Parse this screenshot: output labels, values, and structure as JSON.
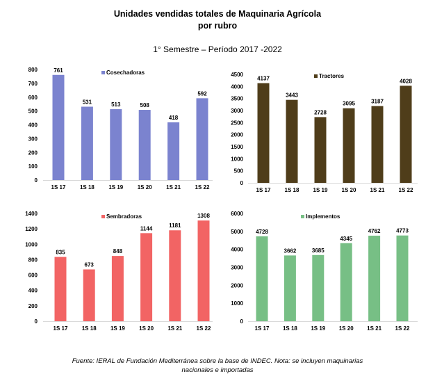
{
  "header": {
    "title_line1": "Unidades vendidas totales de Maquinaria Agrícola",
    "title_line2": "por rubro",
    "subtitle": "1° Semestre – Período 2017 -2022"
  },
  "footer": {
    "source_line1": "Fuente: IERAL de Fundación Mediterránea sobre la base de INDEC. Nota: se incluyen maquinarias",
    "source_line2": "nacionales e importadas"
  },
  "chart_data": [
    {
      "type": "bar",
      "series": [
        {
          "name": "Cosechadoras",
          "values": [
            761,
            531,
            513,
            508,
            418,
            592
          ]
        }
      ],
      "categories": [
        "1S 17",
        "1S 18",
        "1S 19",
        "1S 20",
        "1S 21",
        "1S 22"
      ],
      "color": "#7b83cf",
      "ylim": [
        0,
        800
      ],
      "yticks": [
        0,
        100,
        200,
        300,
        400,
        500,
        600,
        700,
        800
      ],
      "legend": "top-left"
    },
    {
      "type": "bar",
      "series": [
        {
          "name": "Tractores",
          "values": [
            4137,
            3443,
            2728,
            3095,
            3187,
            4028
          ]
        }
      ],
      "categories": [
        "1S 17",
        "1S 18",
        "1S 19",
        "1S 20",
        "1S 21",
        "1S 22"
      ],
      "color": "#4f3d1a",
      "ylim": [
        0,
        4500
      ],
      "yticks": [
        0,
        500,
        1000,
        1500,
        2000,
        2500,
        3000,
        3500,
        4000,
        4500
      ],
      "legend": "top-center"
    },
    {
      "type": "bar",
      "series": [
        {
          "name": "Sembradoras",
          "values": [
            835,
            673,
            848,
            1144,
            1181,
            1308
          ]
        }
      ],
      "categories": [
        "1S 17",
        "1S 18",
        "1S 19",
        "1S 20",
        "1S 21",
        "1S 22"
      ],
      "color": "#f26464",
      "ylim": [
        0,
        1400
      ],
      "yticks": [
        0,
        200,
        400,
        600,
        800,
        1000,
        1200,
        1400
      ],
      "legend": "top-left"
    },
    {
      "type": "bar",
      "series": [
        {
          "name": "Implementos",
          "values": [
            4728,
            3662,
            3685,
            4345,
            4762,
            4773
          ]
        }
      ],
      "categories": [
        "1S 17",
        "1S 18",
        "1S 19",
        "1S 20",
        "1S 21",
        "1S 22"
      ],
      "color": "#77bf85",
      "ylim": [
        0,
        6000
      ],
      "yticks": [
        0,
        1000,
        2000,
        3000,
        4000,
        5000,
        6000
      ],
      "legend": "top-left"
    }
  ]
}
